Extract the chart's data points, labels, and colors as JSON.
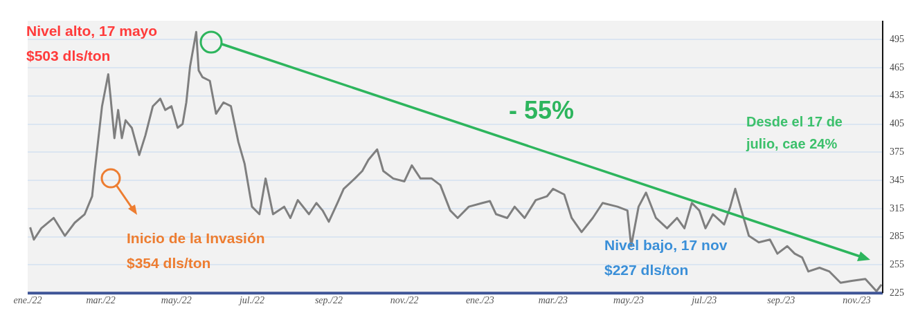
{
  "chart_data": {
    "type": "line",
    "x": [
      "2022-01-03",
      "2022-01-06",
      "2022-01-12",
      "2022-01-22",
      "2022-01-31",
      "2022-02-08",
      "2022-02-16",
      "2022-02-22",
      "2022-02-24",
      "2022-03-02",
      "2022-03-07",
      "2022-03-09",
      "2022-03-12",
      "2022-03-15",
      "2022-03-18",
      "2022-03-21",
      "2022-03-26",
      "2022-04-01",
      "2022-04-06",
      "2022-04-12",
      "2022-04-18",
      "2022-04-22",
      "2022-04-27",
      "2022-05-02",
      "2022-05-06",
      "2022-05-09",
      "2022-05-12",
      "2022-05-17",
      "2022-05-19",
      "2022-05-22",
      "2022-05-28",
      "2022-06-02",
      "2022-06-08",
      "2022-06-14",
      "2022-06-20",
      "2022-06-25",
      "2022-07-01",
      "2022-07-07",
      "2022-07-12",
      "2022-07-18",
      "2022-07-27",
      "2022-08-01",
      "2022-08-07",
      "2022-08-16",
      "2022-08-22",
      "2022-08-27",
      "2022-09-01",
      "2022-09-08",
      "2022-09-13",
      "2022-09-22",
      "2022-09-28",
      "2022-10-03",
      "2022-10-10",
      "2022-10-15",
      "2022-10-23",
      "2022-11-01",
      "2022-11-07",
      "2022-11-14",
      "2022-11-23",
      "2022-11-30",
      "2022-12-08",
      "2022-12-14",
      "2022-12-23",
      "2023-01-03",
      "2023-01-09",
      "2023-01-14",
      "2023-01-23",
      "2023-01-29",
      "2023-02-06",
      "2023-02-15",
      "2023-02-24",
      "2023-03-01",
      "2023-03-10",
      "2023-03-16",
      "2023-03-24",
      "2023-04-02",
      "2023-04-10",
      "2023-04-22",
      "2023-04-30",
      "2023-05-03",
      "2023-05-09",
      "2023-05-15",
      "2023-05-23",
      "2023-06-01",
      "2023-06-09",
      "2023-06-15",
      "2023-06-21",
      "2023-06-27",
      "2023-07-02",
      "2023-07-08",
      "2023-07-17",
      "2023-07-22",
      "2023-07-26",
      "2023-07-31",
      "2023-08-06",
      "2023-08-14",
      "2023-08-23",
      "2023-08-29",
      "2023-09-06",
      "2023-09-12",
      "2023-09-18",
      "2023-09-23",
      "2023-10-02",
      "2023-10-10",
      "2023-10-19",
      "2023-10-28",
      "2023-11-08",
      "2023-11-17",
      "2023-11-21"
    ],
    "series": [
      {
        "color": "#7f7f7f",
        "values": [
          295,
          282,
          294,
          305,
          286,
          300,
          309,
          328,
          354,
          424,
          458,
          432,
          390,
          420,
          390,
          409,
          401,
          372,
          393,
          424,
          432,
          420,
          424,
          401,
          405,
          428,
          466,
          503,
          462,
          455,
          451,
          416,
          428,
          424,
          386,
          363,
          317,
          309,
          347,
          309,
          317,
          305,
          324,
          309,
          321,
          313,
          301,
          321,
          336,
          347,
          355,
          367,
          378,
          355,
          347,
          344,
          361,
          347,
          347,
          340,
          313,
          305,
          317,
          321,
          323,
          309,
          305,
          317,
          305,
          324,
          328,
          336,
          330,
          305,
          290,
          305,
          321,
          317,
          313,
          275,
          317,
          332,
          305,
          294,
          305,
          294,
          321,
          313,
          294,
          309,
          298,
          317,
          336,
          313,
          286,
          279,
          282,
          267,
          275,
          267,
          263,
          248,
          252,
          248,
          236,
          238,
          240,
          227,
          234
        ]
      }
    ],
    "xlim": [
      "2022-01-01",
      "2023-11-22"
    ],
    "xticks": [
      {
        "value": "2022-01",
        "label": "ene./22"
      },
      {
        "value": "2022-03",
        "label": "mar./22"
      },
      {
        "value": "2022-05",
        "label": "may./22"
      },
      {
        "value": "2022-07",
        "label": "jul./22"
      },
      {
        "value": "2022-09",
        "label": "sep./22"
      },
      {
        "value": "2022-11",
        "label": "nov./22"
      },
      {
        "value": "2023-01",
        "label": "ene./23"
      },
      {
        "value": "2023-03",
        "label": "mar./23"
      },
      {
        "value": "2023-05",
        "label": "may./23"
      },
      {
        "value": "2023-07",
        "label": "jul./23"
      },
      {
        "value": "2023-09",
        "label": "sep./23"
      },
      {
        "value": "2023-11",
        "label": "nov./23"
      }
    ],
    "ylim": [
      225,
      515
    ],
    "yticks": [
      225,
      255,
      285,
      315,
      345,
      375,
      405,
      435,
      465,
      495
    ],
    "grid": "y",
    "legend": false,
    "marker": "none",
    "line_style": "solid",
    "annotations": [
      "Nivel alto, 17 mayo\n$503 dls/ton",
      "Inicio de la Invasión\n$354 dls/ton",
      "Nivel bajo, 17 nov\n$227 dls/ton",
      "- 55%",
      "Desde el 17 de\njulio, cae 24%"
    ]
  }
}
